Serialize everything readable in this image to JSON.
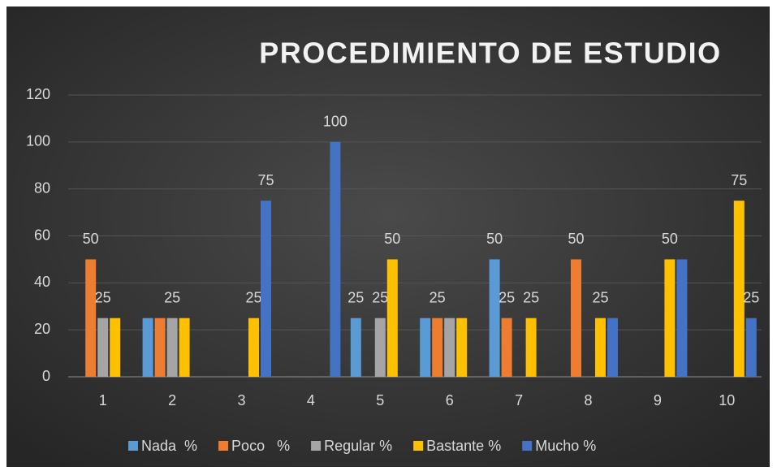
{
  "chart_data": {
    "type": "bar",
    "title": "PROCEDIMIENTO DE ESTUDIO",
    "categories": [
      "1",
      "2",
      "3",
      "4",
      "5",
      "6",
      "7",
      "8",
      "9",
      "10"
    ],
    "series": [
      {
        "name": "Nada  %",
        "color": "#5b9bd5",
        "values": [
          null,
          25,
          null,
          null,
          25,
          25,
          50,
          null,
          null,
          null
        ],
        "value_labels": [
          null,
          null,
          null,
          null,
          "25",
          null,
          "50",
          null,
          null,
          null
        ]
      },
      {
        "name": "Poco   %",
        "color": "#ed7d31",
        "values": [
          50,
          25,
          null,
          null,
          null,
          25,
          25,
          50,
          null,
          null
        ],
        "value_labels": [
          "50",
          null,
          null,
          null,
          null,
          "25",
          "25",
          "50",
          null,
          null
        ]
      },
      {
        "name": "Regular %",
        "color": "#a5a5a5",
        "values": [
          25,
          25,
          null,
          null,
          25,
          25,
          null,
          null,
          null,
          null
        ],
        "value_labels": [
          "25",
          "25",
          null,
          null,
          "25",
          null,
          null,
          null,
          null,
          null
        ]
      },
      {
        "name": "Bastante %",
        "color": "#ffc000",
        "values": [
          25,
          25,
          25,
          null,
          50,
          25,
          25,
          25,
          50,
          75
        ],
        "value_labels": [
          null,
          null,
          "25",
          null,
          "50",
          null,
          "25",
          "25",
          "50",
          "75"
        ]
      },
      {
        "name": "Mucho %",
        "color": "#4472c4",
        "values": [
          null,
          null,
          75,
          100,
          null,
          null,
          null,
          25,
          50,
          25
        ],
        "value_labels": [
          null,
          null,
          "75",
          "100",
          null,
          null,
          null,
          null,
          null,
          "25"
        ]
      }
    ],
    "ylim": [
      0,
      120
    ],
    "yticks": [
      0,
      20,
      40,
      60,
      80,
      100,
      120
    ],
    "grid": true,
    "legend": "bottom"
  }
}
